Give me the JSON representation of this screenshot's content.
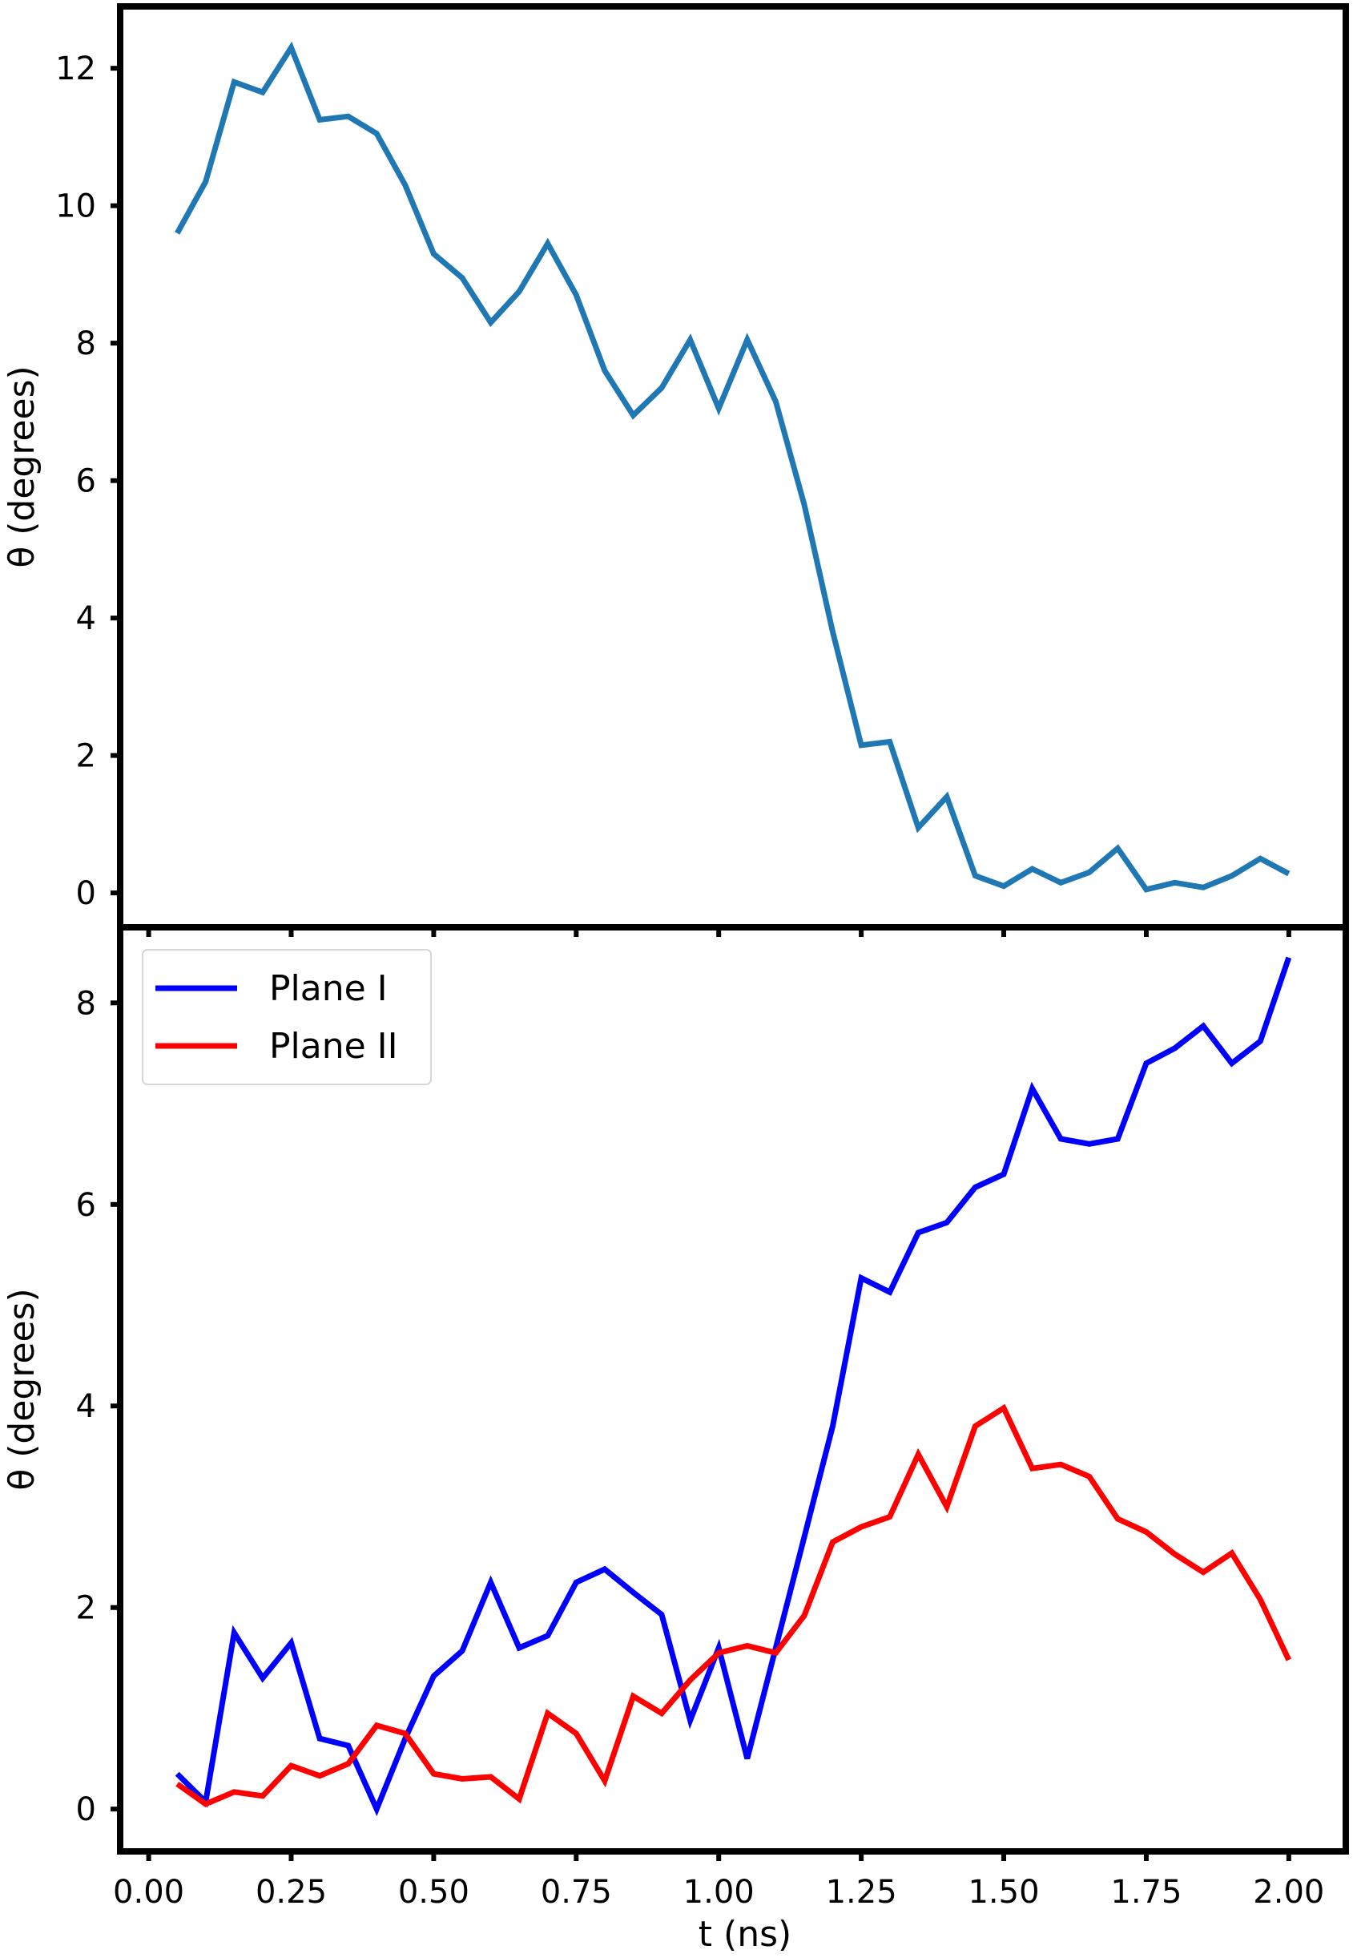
{
  "chart_data": [
    {
      "type": "line",
      "title": "",
      "xlabel": "",
      "ylabel": "θ (degrees)",
      "xlim": [
        -0.05,
        2.1
      ],
      "ylim": [
        -0.5,
        12.9
      ],
      "yticks": [
        0,
        2,
        4,
        6,
        8,
        10,
        12
      ],
      "xticks": [
        0.0,
        0.25,
        0.5,
        0.75,
        1.0,
        1.25,
        1.5,
        1.75,
        2.0
      ],
      "grid": false,
      "series": [
        {
          "color": "#1f77b4",
          "x": [
            0.05,
            0.1,
            0.15,
            0.2,
            0.25,
            0.3,
            0.35,
            0.4,
            0.45,
            0.5,
            0.55,
            0.6,
            0.65,
            0.7,
            0.75,
            0.8,
            0.85,
            0.9,
            0.95,
            1.0,
            1.05,
            1.1,
            1.15,
            1.2,
            1.25,
            1.3,
            1.35,
            1.4,
            1.45,
            1.5,
            1.55,
            1.6,
            1.65,
            1.7,
            1.75,
            1.8,
            1.85,
            1.9,
            1.95,
            2.0
          ],
          "y": [
            9.6,
            10.35,
            11.8,
            11.65,
            12.3,
            11.25,
            11.3,
            11.05,
            10.3,
            9.3,
            8.95,
            8.3,
            8.75,
            9.45,
            8.7,
            7.6,
            6.95,
            7.35,
            8.05,
            7.05,
            8.05,
            7.15,
            5.65,
            3.8,
            2.15,
            2.2,
            0.95,
            1.4,
            0.25,
            0.1,
            0.35,
            0.15,
            0.3,
            0.65,
            0.05,
            0.15,
            0.08,
            0.25,
            0.5,
            0.28
          ]
        }
      ]
    },
    {
      "type": "line",
      "title": "",
      "xlabel": "t (ns)",
      "ylabel": "θ (degrees)",
      "xlim": [
        -0.05,
        2.1
      ],
      "ylim": [
        -0.42,
        8.75
      ],
      "yticks": [
        0,
        2,
        4,
        6,
        8
      ],
      "xticks": [
        0.0,
        0.25,
        0.5,
        0.75,
        1.0,
        1.25,
        1.5,
        1.75,
        2.0
      ],
      "xtick_labels": [
        "0.00",
        "0.25",
        "0.50",
        "0.75",
        "1.00",
        "1.25",
        "1.50",
        "1.75",
        "2.00"
      ],
      "grid": false,
      "legend_position": "top-left",
      "series": [
        {
          "name": "Plane I",
          "color": "#0000ff",
          "x": [
            0.05,
            0.1,
            0.15,
            0.2,
            0.25,
            0.3,
            0.35,
            0.4,
            0.45,
            0.5,
            0.55,
            0.6,
            0.65,
            0.7,
            0.75,
            0.8,
            0.85,
            0.9,
            0.95,
            1.0,
            1.05,
            1.1,
            1.15,
            1.2,
            1.25,
            1.3,
            1.35,
            1.4,
            1.45,
            1.5,
            1.55,
            1.6,
            1.65,
            1.7,
            1.75,
            1.8,
            1.85,
            1.9,
            1.95,
            2.0
          ],
          "y": [
            0.35,
            0.07,
            1.75,
            1.3,
            1.65,
            0.7,
            0.63,
            0.0,
            0.7,
            1.32,
            1.57,
            2.25,
            1.6,
            1.72,
            2.25,
            2.38,
            2.15,
            1.93,
            0.88,
            1.6,
            0.5,
            1.6,
            2.7,
            3.8,
            5.27,
            5.13,
            5.72,
            5.82,
            6.17,
            6.3,
            7.15,
            6.65,
            6.6,
            6.65,
            7.4,
            7.55,
            7.77,
            7.4,
            7.62,
            8.45
          ]
        },
        {
          "name": "Plane II",
          "color": "#ff0000",
          "x": [
            0.05,
            0.1,
            0.15,
            0.2,
            0.25,
            0.3,
            0.35,
            0.4,
            0.45,
            0.5,
            0.55,
            0.6,
            0.65,
            0.7,
            0.75,
            0.8,
            0.85,
            0.9,
            0.95,
            1.0,
            1.05,
            1.1,
            1.15,
            1.2,
            1.25,
            1.3,
            1.35,
            1.4,
            1.45,
            1.5,
            1.55,
            1.6,
            1.65,
            1.7,
            1.75,
            1.8,
            1.85,
            1.9,
            1.95,
            2.0
          ],
          "y": [
            0.25,
            0.05,
            0.17,
            0.13,
            0.43,
            0.33,
            0.45,
            0.83,
            0.75,
            0.35,
            0.3,
            0.32,
            0.1,
            0.95,
            0.75,
            0.28,
            1.12,
            0.95,
            1.28,
            1.55,
            1.62,
            1.55,
            1.92,
            2.65,
            2.8,
            2.9,
            3.52,
            3.0,
            3.8,
            3.98,
            3.38,
            3.42,
            3.3,
            2.88,
            2.75,
            2.53,
            2.35,
            2.54,
            2.08,
            1.48
          ]
        }
      ]
    }
  ]
}
